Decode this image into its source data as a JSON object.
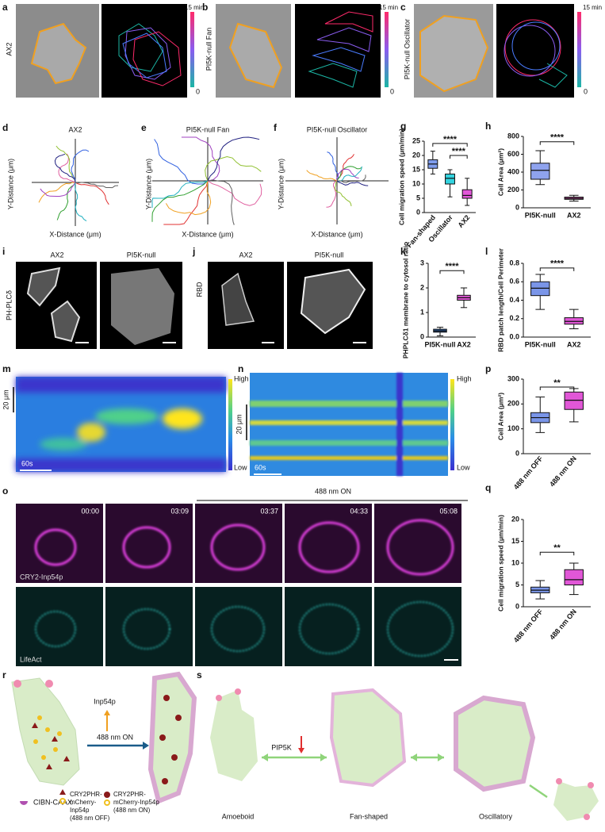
{
  "panels": {
    "a": {
      "letter": "a",
      "label": "AX2",
      "time_max": "15 min",
      "time_min": "0"
    },
    "b": {
      "letter": "b",
      "label": "PI5K-null Fan",
      "time_max": "15 min",
      "time_min": "0"
    },
    "c": {
      "letter": "c",
      "label": "PI5K-null Oscillator",
      "time_max": "15 min",
      "time_min": "0"
    },
    "d": {
      "letter": "d",
      "title": "AX2",
      "ylabel": "Y-Distance (μm)",
      "xlabel": "X-Distance (μm)"
    },
    "e": {
      "letter": "e",
      "title": "PI5K-null Fan",
      "ylabel": "Y-Distance (μm)",
      "xlabel": "X-Distance (μm)"
    },
    "f": {
      "letter": "f",
      "title": "PI5K-null Oscillator",
      "ylabel": "Y-Distance (μm)",
      "xlabel": "X-Distance (μm)"
    },
    "g": {
      "letter": "g",
      "type": "box",
      "ylabel": "Cell migration speed (μm/min)",
      "ylim": [
        0,
        25
      ],
      "yticks": [
        0,
        5,
        10,
        15,
        20,
        25
      ],
      "categories": [
        "Fan-shaped",
        "Oscillator",
        "AX2"
      ],
      "boxes": [
        {
          "color": "#7f9ded",
          "min": 13.5,
          "q1": 15.5,
          "median": 17,
          "q3": 18.5,
          "max": 21.5
        },
        {
          "color": "#33d3df",
          "min": 5.5,
          "q1": 10,
          "median": 12,
          "q3": 13.5,
          "max": 15
        },
        {
          "color": "#e257d9",
          "min": 2.5,
          "q1": 5,
          "median": 6,
          "q3": 8,
          "max": 12
        }
      ],
      "significance": [
        "****",
        "****"
      ]
    },
    "h": {
      "letter": "h",
      "type": "box",
      "ylabel": "Cell Area (μm²)",
      "ylim": [
        0,
        800
      ],
      "yticks": [
        0,
        200,
        400,
        600,
        800
      ],
      "categories": [
        "PI5K-null",
        "AX2"
      ],
      "boxes": [
        {
          "color": "#8fa3ee",
          "min": 260,
          "q1": 320,
          "median": 420,
          "q3": 500,
          "max": 640
        },
        {
          "color": "#c04fa0",
          "min": 75,
          "q1": 95,
          "median": 105,
          "q3": 120,
          "max": 140
        }
      ],
      "significance": [
        "****"
      ]
    },
    "i": {
      "letter": "i",
      "col1": "AX2",
      "col2": "PI5K-null",
      "row": "PH-PLCδ"
    },
    "j": {
      "letter": "j",
      "col1": "AX2",
      "col2": "PI5K-null",
      "row": "RBD"
    },
    "k": {
      "letter": "k",
      "type": "box",
      "ylabel": "PHPLCδ1 membrane to cytosol ratio",
      "ylim": [
        0,
        3
      ],
      "yticks": [
        0,
        1,
        2,
        3
      ],
      "categories": [
        "PI5K-null",
        "AX2"
      ],
      "boxes": [
        {
          "color": "#2a5ba0",
          "min": 0.05,
          "q1": 0.2,
          "median": 0.25,
          "q3": 0.32,
          "max": 0.4
        },
        {
          "color": "#e157d7",
          "min": 1.2,
          "q1": 1.5,
          "median": 1.6,
          "q3": 1.7,
          "max": 2.0
        }
      ],
      "significance": [
        "****"
      ]
    },
    "l": {
      "letter": "l",
      "type": "box",
      "ylabel": "RBD patch length/Cell Perimeter",
      "ylim": [
        0,
        0.8
      ],
      "yticks": [
        {
          "value": 0,
          "label": "0.0"
        },
        0.2,
        0.4,
        0.6,
        0.8
      ],
      "categories": [
        "PI5K-null",
        "AX2"
      ],
      "boxes": [
        {
          "color": "#7a95e8",
          "min": 0.3,
          "q1": 0.45,
          "median": 0.53,
          "q3": 0.6,
          "max": 0.68
        },
        {
          "color": "#e157d7",
          "min": 0.09,
          "q1": 0.14,
          "median": 0.17,
          "q3": 0.21,
          "max": 0.3
        }
      ],
      "significance": [
        "****"
      ]
    },
    "m": {
      "letter": "m",
      "high": "High",
      "low": "Low",
      "scale_y": "20 μm",
      "scale_x": "60s"
    },
    "n": {
      "letter": "n",
      "high": "High",
      "low": "Low",
      "scale_y": "20 μm",
      "scale_x": "60s"
    },
    "o": {
      "letter": "o",
      "light": "488 nm ON",
      "times": [
        "00:00",
        "03:09",
        "03:37",
        "04:33",
        "05:08"
      ],
      "row1": "CRY2-Inp54p",
      "row2": "LifeAct"
    },
    "p": {
      "letter": "p",
      "type": "box",
      "ylabel": "Cell Area (μm²)",
      "ylim": [
        0,
        300
      ],
      "yticks": [
        0,
        100,
        200,
        300
      ],
      "categories": [
        "488 nm OFF",
        "488 nm ON"
      ],
      "boxes": [
        {
          "color": "#7a95e8",
          "min": 85,
          "q1": 125,
          "median": 145,
          "q3": 165,
          "max": 228
        },
        {
          "color": "#e157d7",
          "min": 128,
          "q1": 178,
          "median": 215,
          "q3": 248,
          "max": 262
        }
      ],
      "significance": [
        "**"
      ]
    },
    "q": {
      "letter": "q",
      "type": "box",
      "ylabel": "Cell migration speed (μm/min)",
      "ylim": [
        0,
        20
      ],
      "yticks": [
        0,
        5,
        10,
        15,
        20
      ],
      "categories": [
        "488 nm OFF",
        "488 nm ON"
      ],
      "boxes": [
        {
          "color": "#7a95e8",
          "min": 1.8,
          "q1": 3.2,
          "median": 3.8,
          "q3": 4.5,
          "max": 6
        },
        {
          "color": "#e157d7",
          "min": 2.8,
          "q1": 5,
          "median": 6.2,
          "q3": 8.5,
          "max": 10
        }
      ],
      "significance": [
        "**"
      ]
    },
    "r": {
      "letter": "r",
      "arrow_up": "Inp54p",
      "arrow": "488 nm ON",
      "legend1": "CIBN-CAAX",
      "legend2": [
        "CRY2PHR-",
        "mCherry-",
        "Inp54p",
        "(488 nm OFF)"
      ],
      "legend3": [
        "CRY2PHR-",
        "mCherry-Inp54p",
        "(488 nm ON)"
      ]
    },
    "s": {
      "letter": "s",
      "pip5k": "PIP5K",
      "states": [
        "Amoeboid",
        "Fan-shaped",
        "Oscillatory"
      ]
    }
  }
}
